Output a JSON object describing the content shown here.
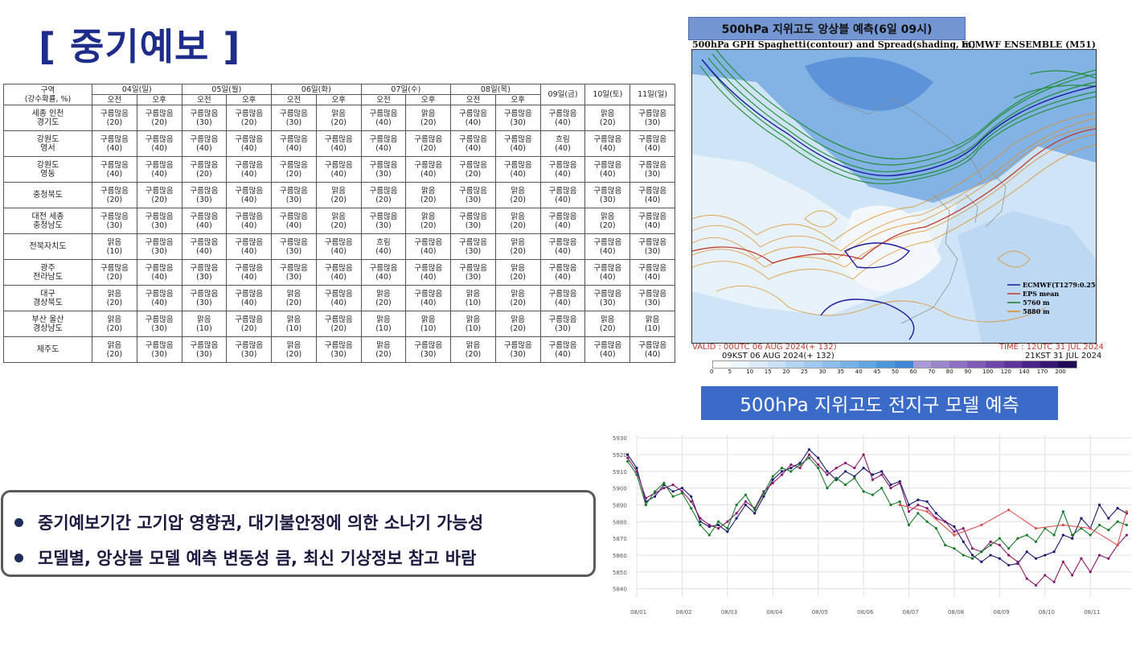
{
  "page_title": "[ 중기예보 ]",
  "forecast": {
    "corner_line1": "구역",
    "corner_line2": "(강수확률, %)",
    "days": [
      "04일(일)",
      "05일(월)",
      "06일(화)",
      "07일(수)",
      "08일(목)"
    ],
    "days_single": [
      "09일(금)",
      "10일(토)",
      "11일(일)"
    ],
    "am": "오전",
    "pm": "오후",
    "regions": [
      {
        "name": [
          "세종 인천",
          "경기도"
        ],
        "cells": [
          [
            "구름많음",
            "20"
          ],
          [
            "구름많음",
            "20"
          ],
          [
            "구름많음",
            "30"
          ],
          [
            "구름많음",
            "20"
          ],
          [
            "구름많음",
            "30"
          ],
          [
            "맑음",
            "20"
          ],
          [
            "구름많음",
            "40"
          ],
          [
            "맑음",
            "20"
          ],
          [
            "구름많음",
            "40"
          ],
          [
            "구름많음",
            "30"
          ],
          [
            "구름많음",
            "40"
          ],
          [
            "맑음",
            "20"
          ],
          [
            "구름많음",
            "30"
          ]
        ]
      },
      {
        "name": [
          "강원도",
          "영서"
        ],
        "cells": [
          [
            "구름많음",
            "40"
          ],
          [
            "구름많음",
            "40"
          ],
          [
            "구름많음",
            "40"
          ],
          [
            "구름많음",
            "40"
          ],
          [
            "구름많음",
            "40"
          ],
          [
            "구름많음",
            "40"
          ],
          [
            "구름많음",
            "40"
          ],
          [
            "구름많음",
            "20"
          ],
          [
            "구름많음",
            "40"
          ],
          [
            "구름많음",
            "40"
          ],
          [
            "흐림",
            "40"
          ],
          [
            "구름많음",
            "40"
          ],
          [
            "구름많음",
            "40"
          ]
        ]
      },
      {
        "name": [
          "강원도",
          "영동"
        ],
        "cells": [
          [
            "구름많음",
            "40"
          ],
          [
            "구름많음",
            "40"
          ],
          [
            "구름많음",
            "20"
          ],
          [
            "구름많음",
            "40"
          ],
          [
            "구름많음",
            "20"
          ],
          [
            "구름많음",
            "40"
          ],
          [
            "구름많음",
            "30"
          ],
          [
            "구름많음",
            "40"
          ],
          [
            "구름많음",
            "20"
          ],
          [
            "구름많음",
            "40"
          ],
          [
            "구름많음",
            "40"
          ],
          [
            "구름많음",
            "40"
          ],
          [
            "구름많음",
            "30"
          ]
        ]
      },
      {
        "name": [
          "충청북도"
        ],
        "cells": [
          [
            "구름많음",
            "20"
          ],
          [
            "구름많음",
            "20"
          ],
          [
            "구름많음",
            "30"
          ],
          [
            "구름많음",
            "40"
          ],
          [
            "구름많음",
            "30"
          ],
          [
            "맑음",
            "20"
          ],
          [
            "구름많음",
            "20"
          ],
          [
            "맑음",
            "20"
          ],
          [
            "구름많음",
            "30"
          ],
          [
            "맑음",
            "20"
          ],
          [
            "구름많음",
            "40"
          ],
          [
            "구름많음",
            "30"
          ],
          [
            "구름많음",
            "40"
          ]
        ]
      },
      {
        "name": [
          "대전 세종",
          "충청남도"
        ],
        "cells": [
          [
            "구름많음",
            "30"
          ],
          [
            "구름많음",
            "30"
          ],
          [
            "구름많음",
            "40"
          ],
          [
            "구름많음",
            "40"
          ],
          [
            "구름많음",
            "40"
          ],
          [
            "맑음",
            "20"
          ],
          [
            "구름많음",
            "30"
          ],
          [
            "맑음",
            "20"
          ],
          [
            "구름많음",
            "30"
          ],
          [
            "맑음",
            "20"
          ],
          [
            "구름많음",
            "40"
          ],
          [
            "맑음",
            "20"
          ],
          [
            "구름많음",
            "40"
          ]
        ]
      },
      {
        "name": [
          "전북자치도"
        ],
        "cells": [
          [
            "맑음",
            "10"
          ],
          [
            "구름많음",
            "30"
          ],
          [
            "구름많음",
            "40"
          ],
          [
            "구름많음",
            "40"
          ],
          [
            "구름많음",
            "30"
          ],
          [
            "구름많음",
            "40"
          ],
          [
            "흐림",
            "40"
          ],
          [
            "구름많음",
            "40"
          ],
          [
            "구름많음",
            "30"
          ],
          [
            "맑음",
            "20"
          ],
          [
            "구름많음",
            "40"
          ],
          [
            "구름많음",
            "40"
          ],
          [
            "구름많음",
            "30"
          ]
        ]
      },
      {
        "name": [
          "광주",
          "전라남도"
        ],
        "cells": [
          [
            "구름많음",
            "20"
          ],
          [
            "구름많음",
            "40"
          ],
          [
            "구름많음",
            "30"
          ],
          [
            "구름많음",
            "40"
          ],
          [
            "구름많음",
            "30"
          ],
          [
            "구름많음",
            "40"
          ],
          [
            "구름많음",
            "40"
          ],
          [
            "구름많음",
            "40"
          ],
          [
            "구름많음",
            "30"
          ],
          [
            "맑음",
            "20"
          ],
          [
            "구름많음",
            "40"
          ],
          [
            "구름많음",
            "40"
          ],
          [
            "구름많음",
            "40"
          ]
        ]
      },
      {
        "name": [
          "대구",
          "경상북도"
        ],
        "cells": [
          [
            "맑음",
            "20"
          ],
          [
            "구름많음",
            "40"
          ],
          [
            "구름많음",
            "30"
          ],
          [
            "구름많음",
            "40"
          ],
          [
            "맑음",
            "20"
          ],
          [
            "구름많음",
            "40"
          ],
          [
            "맑음",
            "20"
          ],
          [
            "구름많음",
            "40"
          ],
          [
            "맑음",
            "10"
          ],
          [
            "맑음",
            "20"
          ],
          [
            "구름많음",
            "40"
          ],
          [
            "구름많음",
            "30"
          ],
          [
            "구름많음",
            "30"
          ]
        ]
      },
      {
        "name": [
          "부산 울산",
          "경상남도"
        ],
        "cells": [
          [
            "맑음",
            "20"
          ],
          [
            "구름많음",
            "30"
          ],
          [
            "맑음",
            "10"
          ],
          [
            "구름많음",
            "20"
          ],
          [
            "맑음",
            "10"
          ],
          [
            "구름많음",
            "20"
          ],
          [
            "맑음",
            "10"
          ],
          [
            "맑음",
            "10"
          ],
          [
            "맑음",
            "10"
          ],
          [
            "맑음",
            "20"
          ],
          [
            "구름많음",
            "30"
          ],
          [
            "맑음",
            "20"
          ],
          [
            "맑음",
            "10"
          ]
        ]
      },
      {
        "name": [
          "제주도"
        ],
        "cells": [
          [
            "맑음",
            "20"
          ],
          [
            "구름많음",
            "30"
          ],
          [
            "구름많음",
            "30"
          ],
          [
            "구름많음",
            "30"
          ],
          [
            "맑음",
            "20"
          ],
          [
            "구름많음",
            "30"
          ],
          [
            "맑음",
            "20"
          ],
          [
            "구름많음",
            "30"
          ],
          [
            "맑음",
            "20"
          ],
          [
            "구름많음",
            "30"
          ],
          [
            "구름많음",
            "40"
          ],
          [
            "구름많음",
            "40"
          ],
          [
            "구름많음",
            "40"
          ]
        ]
      }
    ]
  },
  "map": {
    "header": "500hPa 지위고도 앙상블 예측(6일 09시)",
    "subtitle_left": "500hPa GPH Spaghetti(contour) and Spread(shading, m)",
    "subtitle_right": "ECMWF ENSEMBLE (M51)",
    "valid_line1": "VALID : 00UTC 06 AUG 2024(+ 132)",
    "valid_line2": "09KST 06 AUG 2024(+ 132)",
    "time_line1": "TIME : 12UTC 31 JUL 2024",
    "time_line2": "21KST 31 JUL 2024",
    "legend": [
      {
        "label": "ECMWF(T1279:0.25d)",
        "color": "#1a1aa0"
      },
      {
        "label": "EPS mean",
        "color": "#c0392b"
      },
      {
        "label": "5760 m",
        "color": "#1a7a2a"
      },
      {
        "label": "5880 m",
        "color": "#e08a1e"
      }
    ],
    "colorbar_ticks": [
      "0",
      "5",
      "10",
      "15",
      "20",
      "25",
      "30",
      "35",
      "40",
      "45",
      "50",
      "60",
      "70",
      "80",
      "90",
      "100",
      "120",
      "140",
      "170",
      "200"
    ],
    "colorbar_colors": [
      "#ffffff",
      "#eef6fd",
      "#dcebfa",
      "#c8e1f7",
      "#b3d5f3",
      "#9fcaf0",
      "#8bbeec",
      "#76b2e8",
      "#62a5e3",
      "#4d98dd",
      "#3f87d4",
      "#a89bd6",
      "#9b86cc",
      "#8d70c2",
      "#7f5bb7",
      "#7046ab",
      "#5e339c",
      "#4a238a",
      "#351672",
      "#1e0a55"
    ]
  },
  "chart": {
    "header": "500hPa 지위고도 전지구 모델 예측"
  },
  "chart_data": {
    "type": "line",
    "title": "",
    "xlabel": "",
    "ylabel": "",
    "x_ticks": [
      "08/01",
      "08/02",
      "08/03",
      "08/04",
      "08/05",
      "08/06",
      "08/07",
      "08/08",
      "08/09",
      "08/10",
      "08/11"
    ],
    "y_ticks": [
      5930,
      5920,
      5910,
      5900,
      5890,
      5880,
      5870,
      5860,
      5850,
      5840
    ],
    "ylim": [
      5835,
      5932
    ],
    "xlim": [
      0,
      10.9
    ],
    "grid": true,
    "series": [
      {
        "color": "#1a1a6e",
        "x": [
          -0.2,
          0,
          0.2,
          0.4,
          0.6,
          0.8,
          1,
          1.2,
          1.4,
          1.6,
          1.8,
          2,
          2.2,
          2.4,
          2.6,
          2.8,
          3,
          3.2,
          3.4,
          3.6,
          3.8,
          4,
          4.2,
          4.4,
          4.6,
          4.8,
          5,
          5.2,
          5.4,
          5.6,
          5.8,
          6,
          6.2,
          6.4,
          6.6,
          6.8,
          7,
          7.2,
          7.4,
          7.6,
          7.8,
          8,
          8.2,
          8.4,
          8.6,
          8.8,
          9,
          9.2,
          9.4,
          9.6,
          9.8,
          10,
          10.2,
          10.4,
          10.6,
          10.8
        ],
        "values": [
          5920,
          5912,
          5892,
          5895,
          5902,
          5898,
          5900,
          5895,
          5880,
          5877,
          5878,
          5874,
          5882,
          5890,
          5885,
          5895,
          5905,
          5910,
          5912,
          5915,
          5923,
          5918,
          5910,
          5905,
          5910,
          5907,
          5912,
          5908,
          5910,
          5902,
          5904,
          5890,
          5893,
          5892,
          5885,
          5880,
          5877,
          5868,
          5860,
          5856,
          5860,
          5858,
          5854,
          5855,
          5862,
          5858,
          5860,
          5862,
          5872,
          5870,
          5882,
          5876,
          5890,
          5882,
          5888,
          5885
        ]
      },
      {
        "color": "#8a1a6e",
        "x": [
          -0.2,
          0,
          0.2,
          0.4,
          0.6,
          0.8,
          1,
          1.2,
          1.4,
          1.6,
          1.8,
          2,
          2.2,
          2.4,
          2.6,
          2.8,
          3,
          3.2,
          3.4,
          3.6,
          3.8,
          4,
          4.2,
          4.4,
          4.6,
          4.8,
          5,
          5.2,
          5.4,
          5.6,
          5.8,
          6,
          6.2,
          6.4,
          6.6,
          6.8,
          7,
          7.2,
          7.4,
          7.6,
          7.8,
          8,
          8.2,
          8.4,
          8.6,
          8.8,
          9,
          9.2,
          9.4,
          9.6,
          9.8,
          10,
          10.2,
          10.4,
          10.6,
          10.8
        ],
        "values": [
          5918,
          5910,
          5894,
          5897,
          5900,
          5902,
          5898,
          5892,
          5882,
          5878,
          5876,
          5880,
          5885,
          5892,
          5888,
          5898,
          5903,
          5908,
          5914,
          5912,
          5920,
          5914,
          5908,
          5912,
          5915,
          5912,
          5920,
          5905,
          5908,
          5900,
          5903,
          5886,
          5890,
          5888,
          5882,
          5880,
          5874,
          5876,
          5864,
          5862,
          5868,
          5866,
          5860,
          5856,
          5846,
          5842,
          5848,
          5844,
          5856,
          5848,
          5858,
          5850,
          5860,
          5858,
          5866,
          5872
        ]
      },
      {
        "color": "#1a7a2a",
        "x": [
          -0.2,
          0,
          0.2,
          0.4,
          0.6,
          0.8,
          1,
          1.2,
          1.4,
          1.6,
          1.8,
          2,
          2.2,
          2.4,
          2.6,
          2.8,
          3,
          3.2,
          3.4,
          3.6,
          3.8,
          4,
          4.2,
          4.4,
          4.6,
          4.8,
          5,
          5.2,
          5.4,
          5.6,
          5.8,
          6,
          6.2,
          6.4,
          6.6,
          6.8,
          7,
          7.2,
          7.4,
          7.6,
          7.8,
          8,
          8.2,
          8.4,
          8.6,
          8.8,
          9,
          9.2,
          9.4,
          9.6,
          9.8,
          10,
          10.2,
          10.4,
          10.6,
          10.8
        ],
        "values": [
          5916,
          5908,
          5890,
          5898,
          5903,
          5895,
          5897,
          5888,
          5878,
          5872,
          5880,
          5876,
          5890,
          5896,
          5887,
          5897,
          5907,
          5912,
          5910,
          5914,
          5918,
          5912,
          5900,
          5906,
          5902,
          5906,
          5898,
          5896,
          5900,
          5890,
          5892,
          5878,
          5885,
          5880,
          5876,
          5866,
          5864,
          5860,
          5858,
          5862,
          5866,
          5870,
          5864,
          5870,
          5872,
          5868,
          5876,
          5872,
          5886,
          5872,
          5876,
          5872,
          5878,
          5875,
          5880,
          5878
        ]
      },
      {
        "color": "#d9534f",
        "x": [
          5.8,
          6.4,
          7.0,
          7.6,
          8.2,
          8.8,
          9.4,
          10.0,
          10.6,
          10.8
        ],
        "values": [
          5890,
          5886,
          5872,
          5878,
          5887,
          5876,
          5878,
          5876,
          5866,
          5886
        ]
      }
    ]
  },
  "notes": [
    "중기예보기간 고기압 영향권, 대기불안정에 의한 소나기 가능성",
    "모델별, 앙상블 모델 예측 변동성 큼, 최신 기상정보 참고 바람"
  ]
}
